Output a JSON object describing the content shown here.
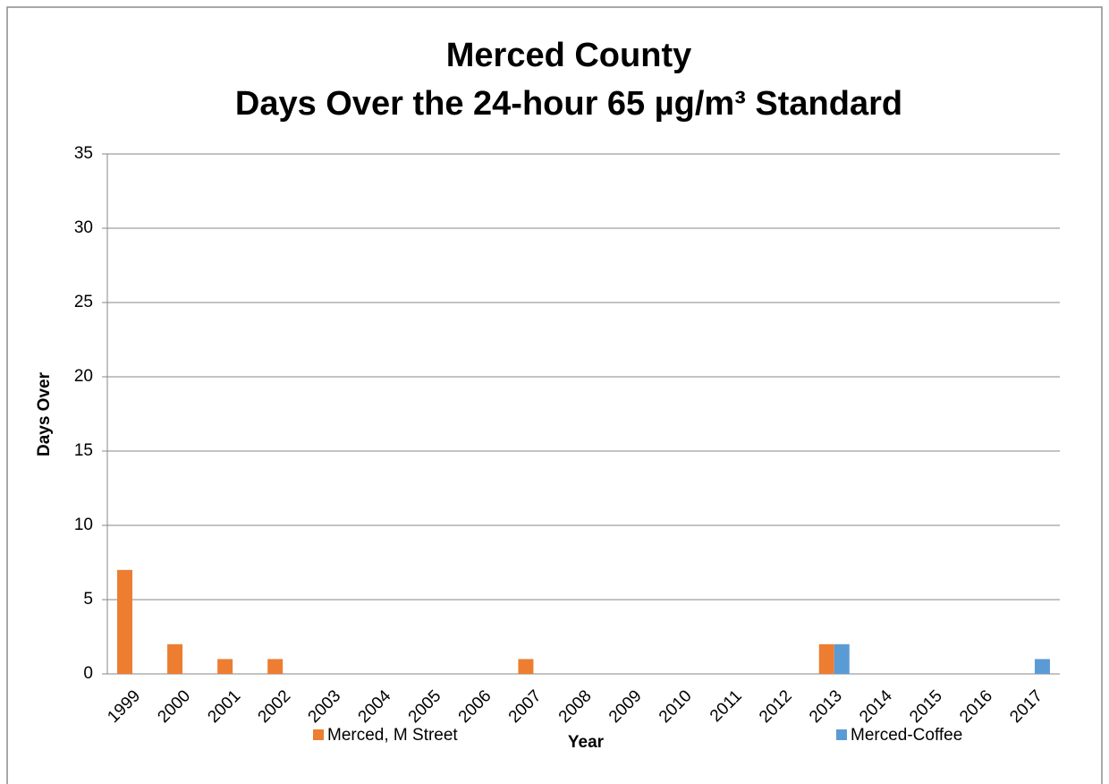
{
  "chart_data": {
    "type": "bar",
    "title": "Merced County",
    "subtitle": "Days Over the 24-hour 65 µg/m³ Standard",
    "x_label": "Year",
    "y_label": "Days Over",
    "categories": [
      "1999",
      "2000",
      "2001",
      "2002",
      "2003",
      "2004",
      "2005",
      "2006",
      "2007",
      "2008",
      "2009",
      "2010",
      "2011",
      "2012",
      "2013",
      "2014",
      "2015",
      "2016",
      "2017"
    ],
    "series": [
      {
        "name": "Merced, M Street",
        "color": "#ed7d31",
        "values": [
          7,
          2,
          1,
          1,
          0,
          0,
          0,
          0,
          1,
          0,
          0,
          0,
          0,
          0,
          2,
          0,
          0,
          0,
          0
        ]
      },
      {
        "name": "Merced-Coffee",
        "color": "#5b9bd5",
        "values": [
          0,
          0,
          0,
          0,
          0,
          0,
          0,
          0,
          0,
          0,
          0,
          0,
          0,
          0,
          2,
          0,
          0,
          0,
          1
        ]
      }
    ],
    "ylim": [
      0,
      35
    ],
    "yticks": [
      0,
      5,
      10,
      15,
      20,
      25,
      30,
      35
    ],
    "grid": true,
    "legend": "bottom"
  }
}
